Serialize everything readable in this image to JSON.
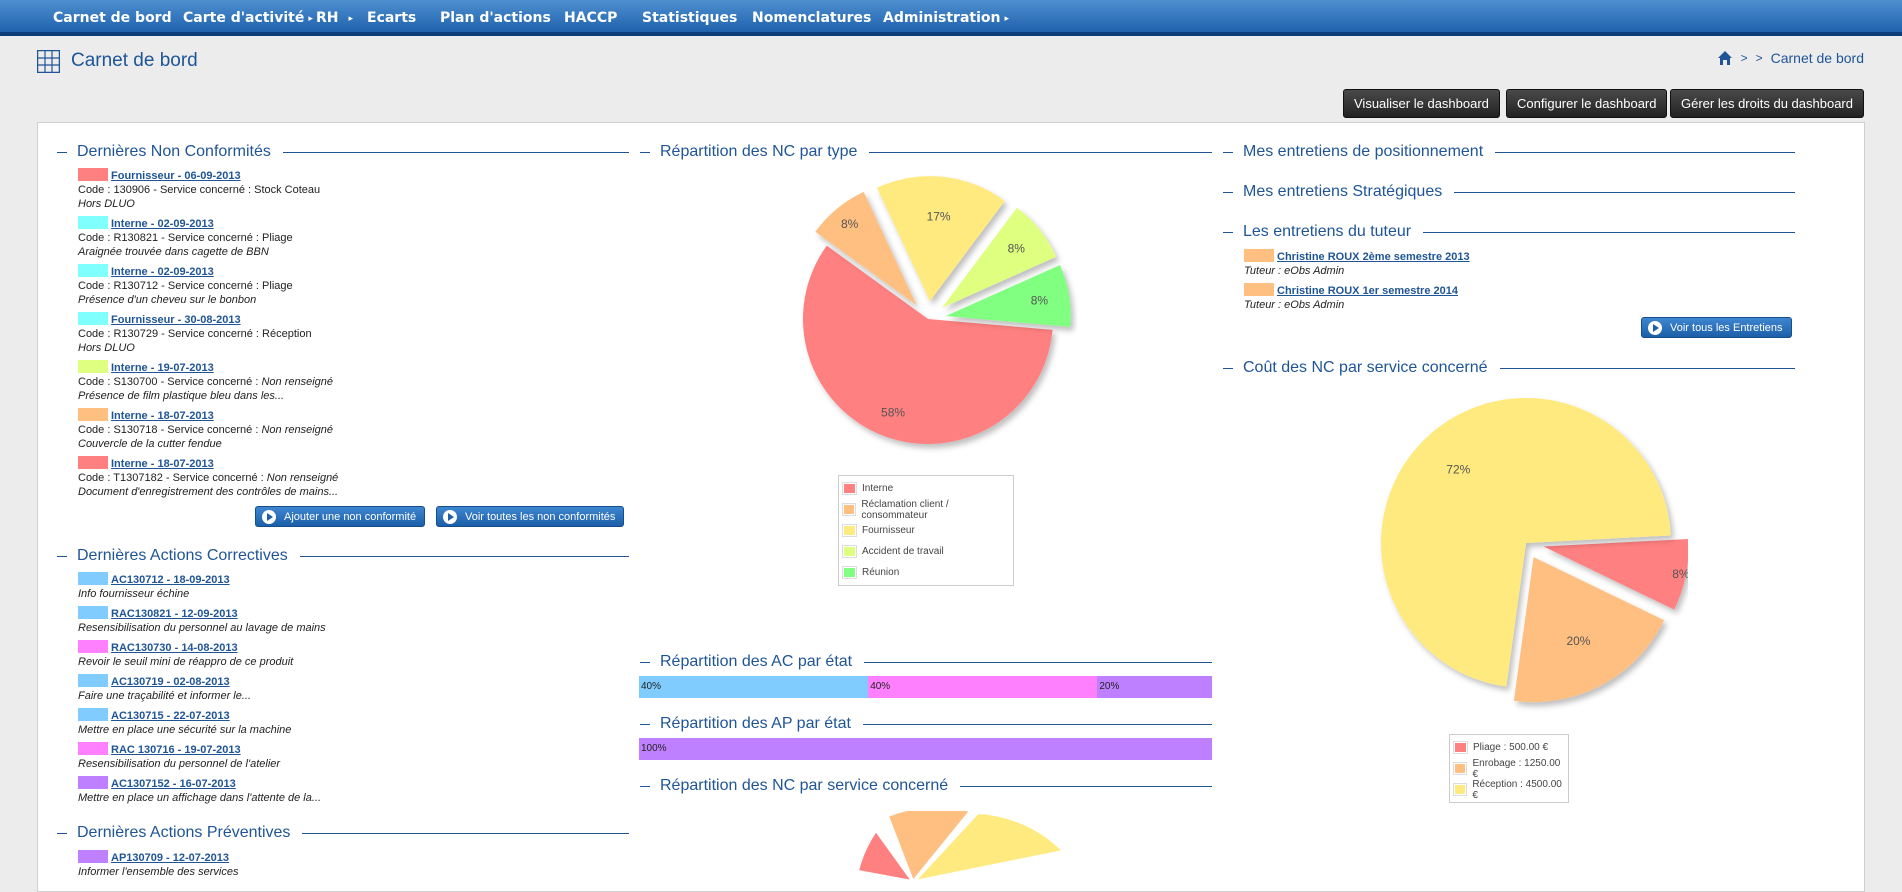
{
  "nav": {
    "items": [
      {
        "label": "Carnet de bord",
        "caret": false
      },
      {
        "label": "Carte d'activité",
        "caret": true
      },
      {
        "label": "RH",
        "caret": true
      },
      {
        "label": "Ecarts",
        "caret": false
      },
      {
        "label": "Plan d'actions",
        "caret": false
      },
      {
        "label": "HACCP",
        "caret": false
      },
      {
        "label": "Statistiques",
        "caret": false
      },
      {
        "label": "Nomenclatures",
        "caret": false
      },
      {
        "label": "Administration",
        "caret": true
      }
    ]
  },
  "header": {
    "title": "Carnet de bord",
    "breadcrumb": {
      "sep1": ">",
      "sep2": ">",
      "current": "Carnet de bord"
    },
    "buttons": {
      "view": "Visualiser le dashboard",
      "configure": "Configurer le dashboard",
      "rights": "Gérer les droits du dashboard"
    }
  },
  "colors": {
    "red": "#ff8080",
    "orange": "#ffbf80",
    "yellow": "#ffea80",
    "lime": "#dfff80",
    "green": "#80ff80",
    "cyan": "#80ffff",
    "blue": "#80ccff",
    "pink": "#ff80ff",
    "purple": "#bf80ff",
    "accent": "#1f5596"
  },
  "nc": {
    "title": "Dernières Non Conformités",
    "items": [
      {
        "color": "#ff8080",
        "link": "Fournisseur - 06-09-2013",
        "code": "Code : 130906 - Service concerné : Stock Coteau",
        "unset": "",
        "desc": "Hors DLUO"
      },
      {
        "color": "#80ffff",
        "link": "Interne - 02-09-2013",
        "code": "Code : R130821 - Service concerné : Pliage",
        "unset": "",
        "desc": "Araignée trouvée dans cagette de BBN"
      },
      {
        "color": "#80ffff",
        "link": "Interne - 02-09-2013",
        "code": "Code : R130712 - Service concerné : Pliage",
        "unset": "",
        "desc": "Présence d'un cheveu sur le bonbon"
      },
      {
        "color": "#80ffff",
        "link": "Fournisseur - 30-08-2013",
        "code": "Code : R130729 - Service concerné : Réception",
        "unset": "",
        "desc": "Hors DLUO"
      },
      {
        "color": "#dfff80",
        "link": "Interne - 19-07-2013",
        "code": "Code : S130700 - Service concerné : ",
        "unset": "Non renseigné",
        "desc": "Présence de film plastique bleu dans les..."
      },
      {
        "color": "#ffbf80",
        "link": "Interne - 18-07-2013",
        "code": "Code : S130718 - Service concerné : ",
        "unset": "Non renseigné",
        "desc": "Couvercle de la cutter fendue"
      },
      {
        "color": "#ff8080",
        "link": "Interne - 18-07-2013",
        "code": "Code : T1307182 - Service concerné : ",
        "unset": "Non renseigné",
        "desc": "Document d'enregistrement des contrôles de mains..."
      }
    ],
    "add_button": "Ajouter une non conformité",
    "all_button": "Voir toutes les non conformités"
  },
  "ac": {
    "title": "Dernières Actions Correctives",
    "items": [
      {
        "color": "#80ccff",
        "link": "AC130712 - 18-09-2013",
        "desc": "Info fournisseur échine"
      },
      {
        "color": "#80ccff",
        "link": "RAC130821 - 12-09-2013",
        "desc": "Resensibilisation du personnel au lavage de mains"
      },
      {
        "color": "#ff80ff",
        "link": "RAC130730 - 14-08-2013",
        "desc": "Revoir le seuil mini de réappro de ce produit"
      },
      {
        "color": "#80ccff",
        "link": "AC130719 - 02-08-2013",
        "desc": "Faire une traçabilité et informer le..."
      },
      {
        "color": "#80ccff",
        "link": "AC130715 - 22-07-2013",
        "desc": "Mettre en place une sécurité sur la machine"
      },
      {
        "color": "#ff80ff",
        "link": "RAC 130716 - 19-07-2013",
        "desc": "Resensibilisation du personnel de l'atelier"
      },
      {
        "color": "#bf80ff",
        "link": "AC1307152 - 16-07-2013",
        "desc": "Mettre en place un affichage dans l'attente de la..."
      }
    ]
  },
  "ap": {
    "title": "Dernières Actions Préventives",
    "items": [
      {
        "color": "#bf80ff",
        "link": "AP130709 - 12-07-2013",
        "desc": "Informer l'ensemble des services"
      }
    ]
  },
  "chart_nc_type": {
    "title": "Répartition des NC par type",
    "chart_data": {
      "type": "pie",
      "categories": [
        "Interne",
        "Réclamation client / consommateur",
        "Fournisseur",
        "Accident de travail",
        "Réunion"
      ],
      "values": [
        58,
        8,
        17,
        8,
        8
      ],
      "labels": [
        "58%",
        "8%",
        "17%",
        "8%",
        "8%"
      ],
      "colors": [
        "#ff8080",
        "#ffbf80",
        "#ffea80",
        "#dfff80",
        "#80ff80"
      ],
      "legend": "bottom"
    }
  },
  "chart_ac_state": {
    "title": "Répartition des AC par état",
    "chart_data": {
      "type": "bar",
      "values": [
        40,
        40,
        20
      ],
      "labels": [
        "40%",
        "40%",
        "20%"
      ],
      "colors": [
        "#80ccff",
        "#ff80ff",
        "#bf80ff"
      ]
    }
  },
  "chart_ap_state": {
    "title": "Répartition des AP par état",
    "chart_data": {
      "type": "bar",
      "values": [
        100
      ],
      "labels": [
        "100%"
      ],
      "colors": [
        "#bf80ff"
      ]
    }
  },
  "chart_nc_service": {
    "title": "Répartition des NC par service concerné"
  },
  "right": {
    "positioning_title": "Mes entretiens de positionnement",
    "strategic_title": "Mes entretiens Stratégiques",
    "tutor_title": "Les entretiens du tuteur",
    "tutor_items": [
      {
        "color": "#ffbf80",
        "link": "Christine ROUX 2ème semestre 2013",
        "tutor": "Tuteur : eObs Admin"
      },
      {
        "color": "#ffbf80",
        "link": "Christine ROUX 1er semestre 2014",
        "tutor": "Tuteur : eObs Admin"
      }
    ],
    "all_interviews_button": "Voir tous les Entretiens"
  },
  "chart_cost": {
    "title": "Coût des NC par service concerné",
    "chart_data": {
      "type": "pie",
      "categories": [
        "Pliage : 500.00 €",
        "Enrobage : 1250.00 €",
        "Réception : 4500.00 €"
      ],
      "values": [
        8,
        20,
        72
      ],
      "labels": [
        "8%",
        "20%",
        "72%"
      ],
      "colors": [
        "#ff8080",
        "#ffbf80",
        "#ffea80"
      ],
      "legend": "bottom"
    }
  }
}
